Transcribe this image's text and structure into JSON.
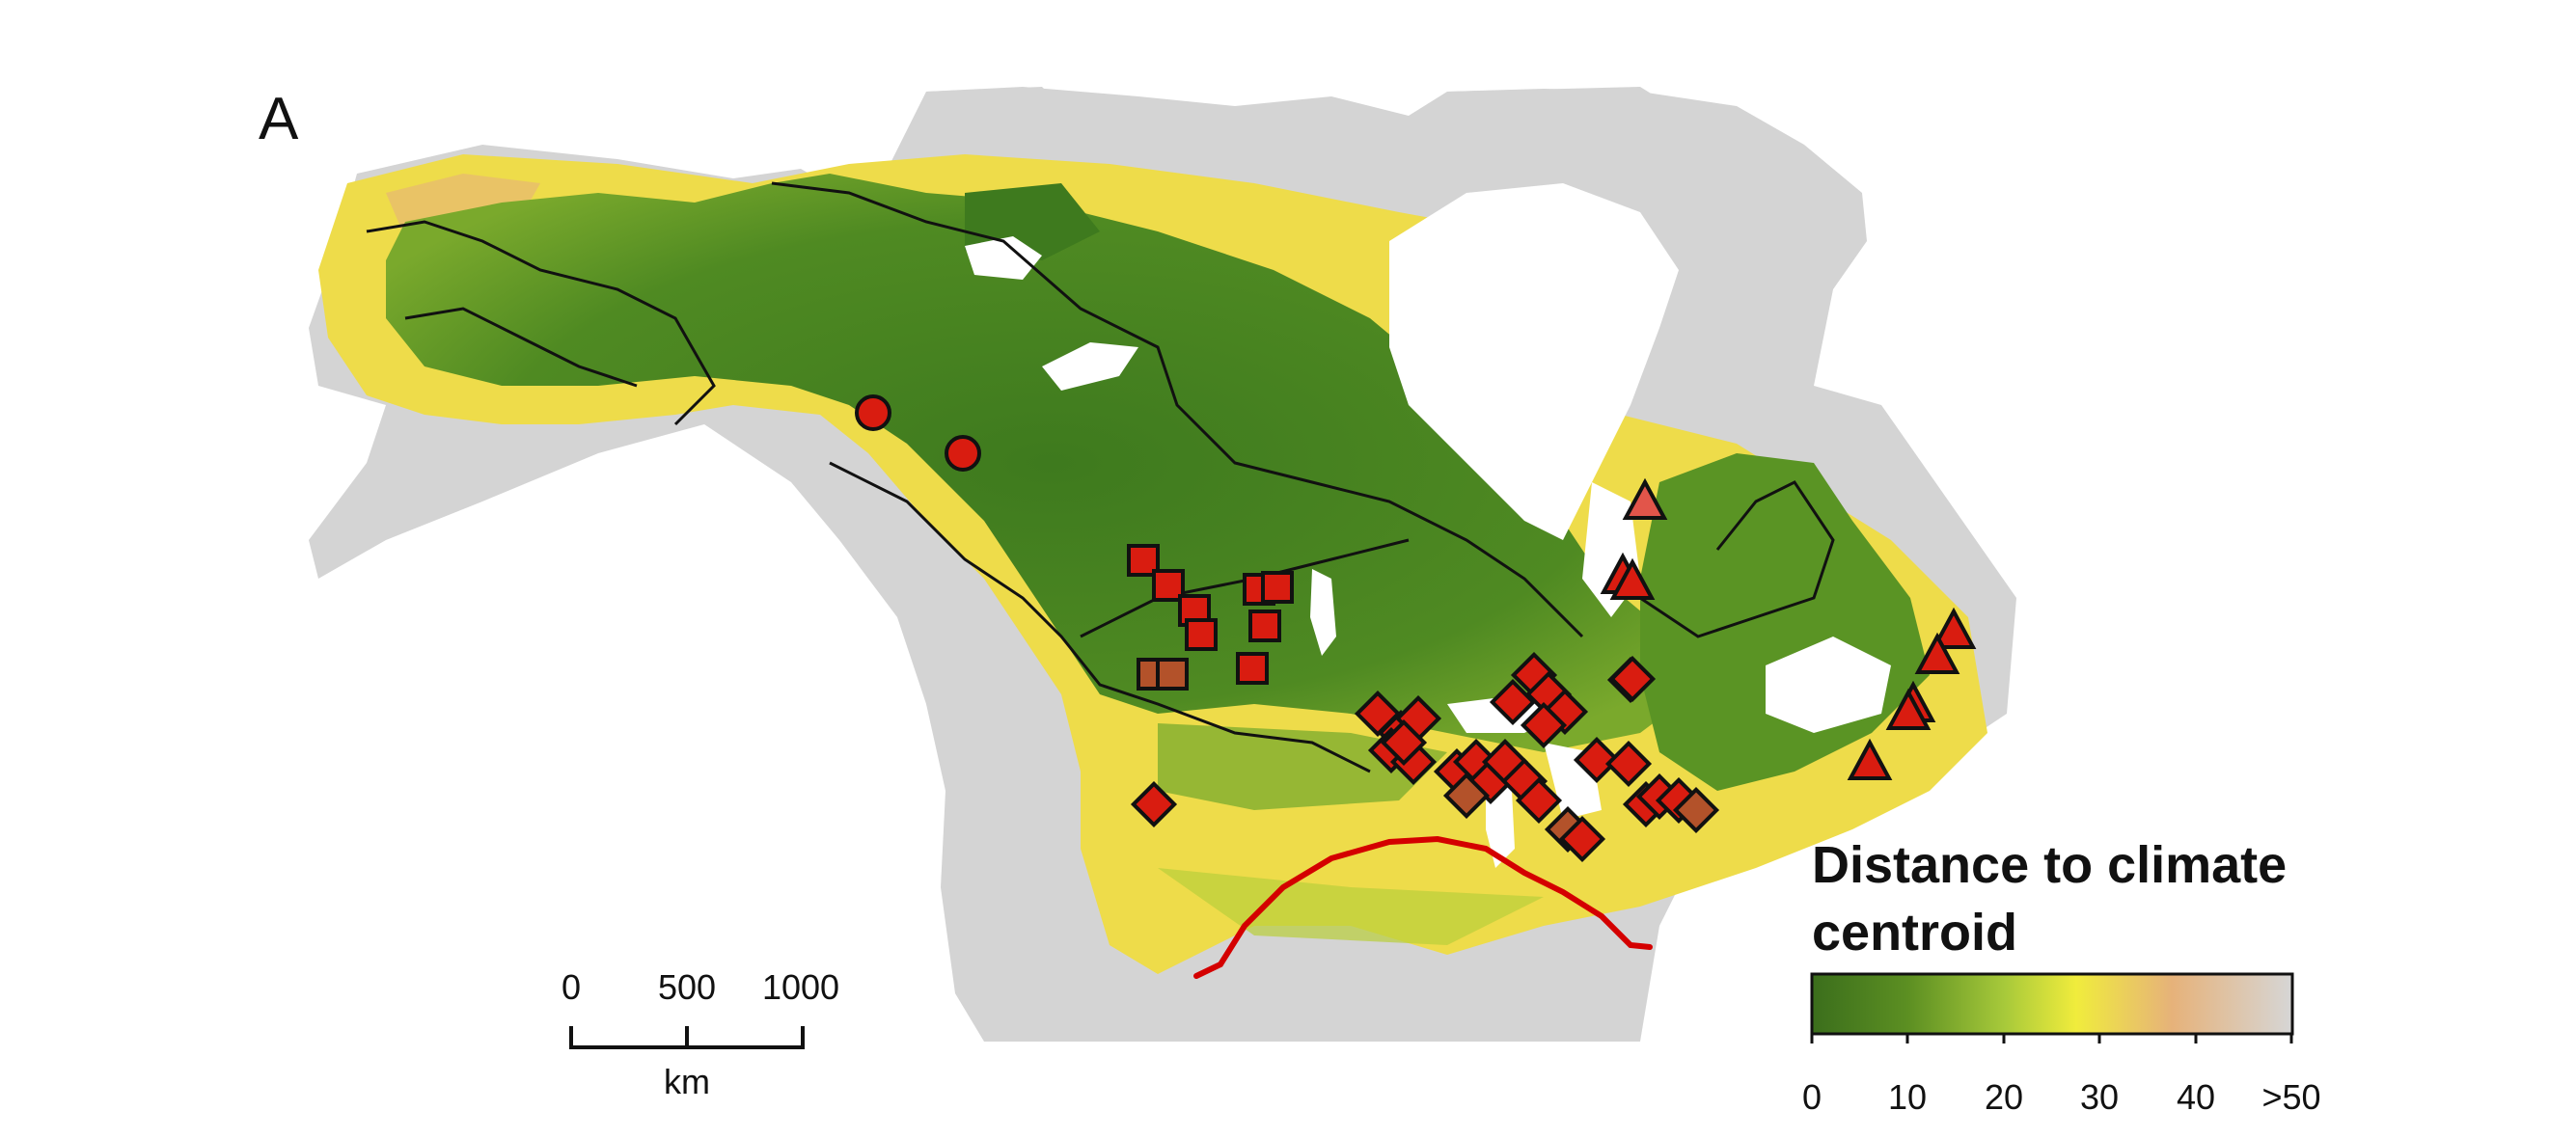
{
  "panel_label": "A",
  "legend": {
    "title": "Distance to climate centroid",
    "ticks": [
      "0",
      "10",
      "20",
      "30",
      "40",
      ">50"
    ],
    "gradient_colors": [
      "#3b6e1c",
      "#5c8f22",
      "#a7c93a",
      "#f0ec3c",
      "#e6b27a",
      "#d6d6d6"
    ]
  },
  "scale_bar": {
    "ticks": [
      "0",
      "500",
      "1000"
    ],
    "unit": "km"
  },
  "colors": {
    "background": "#ffffff",
    "no_data_land": "#d4d4d4",
    "water": "#ffffff",
    "boundary_line": "#111111",
    "southern_line": "#d40000",
    "marker_fill": "#d91c10",
    "marker_fill_light": "#e2554a",
    "marker_fill_brown": "#b3522a"
  },
  "marker_shapes": [
    "circle",
    "square",
    "diamond",
    "triangle"
  ]
}
